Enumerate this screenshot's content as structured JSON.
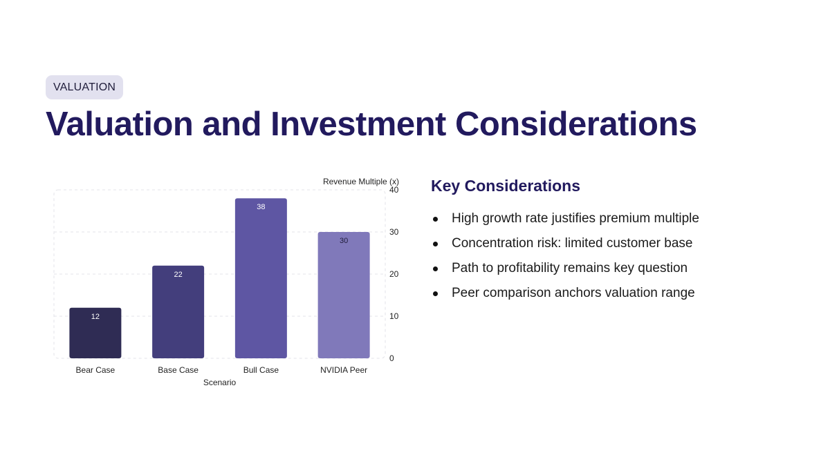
{
  "tag": "VALUATION",
  "title": "Valuation and Investment Considerations",
  "chart_data": {
    "type": "bar",
    "categories": [
      "Bear Case",
      "Base Case",
      "Bull Case",
      "NVIDIA Peer"
    ],
    "values": [
      12,
      22,
      38,
      30
    ],
    "data_labels": [
      "12",
      "22",
      "38",
      "30"
    ],
    "xlabel": "Scenario",
    "ylabel": "Revenue Multiple (x)",
    "ylim": [
      0,
      40
    ],
    "yticks": [
      "0",
      "10",
      "20",
      "30",
      "40"
    ],
    "y_axis_side": "right",
    "grid": true,
    "legend": "none",
    "colors": [
      "#2f2c54",
      "#433e7c",
      "#5e56a3",
      "#8079ba"
    ],
    "label_colors": [
      "#ffffff",
      "#ffffff",
      "#ffffff",
      "#1f1c3a"
    ]
  },
  "considerations": {
    "heading": "Key Considerations",
    "items": [
      "High growth rate justifies premium multiple",
      "Concentration risk: limited customer base",
      "Path to profitability remains key question",
      "Peer comparison anchors valuation range"
    ]
  }
}
